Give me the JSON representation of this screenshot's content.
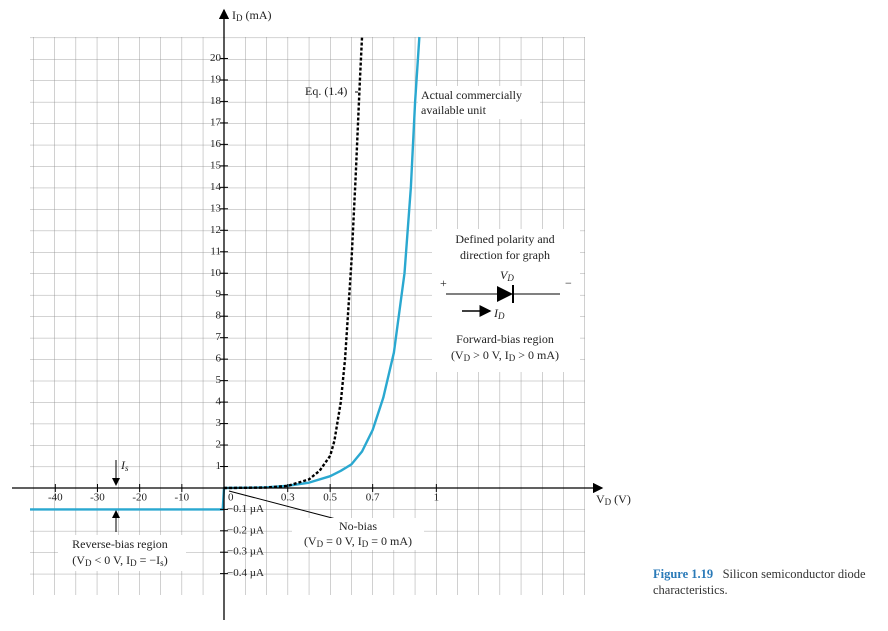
{
  "chart_data": {
    "type": "line",
    "ylabel": [
      "I",
      "D",
      " (mA)"
    ],
    "xlabel": [
      "V",
      "D",
      " (V)"
    ],
    "xlim": [
      -46,
      1.7
    ],
    "ylim": [
      -0.0005,
      21
    ],
    "xticks": [
      -40,
      -30,
      -20,
      -10,
      0,
      0.3,
      0.5,
      0.7,
      1
    ],
    "yticks": [
      1,
      2,
      3,
      4,
      5,
      6,
      7,
      8,
      9,
      10,
      11,
      12,
      13,
      14,
      15,
      16,
      17,
      18,
      19,
      20,
      {
        "value": -0.0001,
        "label": "−0.1 µA"
      },
      {
        "value": -0.0002,
        "label": "−0.2 µA"
      },
      {
        "value": -0.0003,
        "label": "−0.3 µA"
      },
      {
        "value": -0.0004,
        "label": "−0.4 µA"
      }
    ],
    "grid": true,
    "series": [
      {
        "color": "#2aa8d0",
        "dash": false,
        "x": [
          -46,
          -0.3,
          0,
          0.2,
          0.3,
          0.4,
          0.5,
          0.55,
          0.6,
          0.65,
          0.7,
          0.75,
          0.8,
          0.85,
          0.88,
          0.9,
          0.92
        ],
        "values": [
          -0.0001,
          -0.0001,
          0,
          0.03,
          0.1,
          0.25,
          0.55,
          0.8,
          1.1,
          1.7,
          2.7,
          4.2,
          6.3,
          10,
          14,
          18,
          21
        ]
      },
      {
        "color": "#000000",
        "dash": true,
        "x": [
          0,
          0.2,
          0.3,
          0.4,
          0.45,
          0.5,
          0.52,
          0.55,
          0.57,
          0.6,
          0.62,
          0.64,
          0.65
        ],
        "values": [
          0,
          0.02,
          0.1,
          0.4,
          0.8,
          1.5,
          2.2,
          4,
          6,
          10.5,
          14.5,
          19,
          21
        ]
      }
    ],
    "annotations": {
      "eq": "Eq. (1.4)",
      "actual": [
        "Actual commercially",
        "available unit"
      ],
      "polarity": [
        "Defined polarity and",
        "direction for graph"
      ],
      "vd": [
        "V",
        "D"
      ],
      "plus": "+",
      "minus": "−",
      "id": [
        "I",
        "D"
      ],
      "forward": "Forward-bias region",
      "forward_cond": [
        "(V",
        "D",
        " > 0 V,  I",
        "D",
        " > 0 mA)"
      ],
      "is": [
        "I",
        "s"
      ],
      "reverse": "Reverse-bias region",
      "reverse_cond": [
        "(V",
        "D",
        " < 0 V, I",
        "D",
        " = −I",
        "s",
        ")"
      ],
      "nobias": "No-bias",
      "nobias_cond": [
        "(V",
        "D",
        " = 0 V, I",
        "D",
        " = 0 mA)"
      ]
    },
    "caption": {
      "label": "Figure 1.19",
      "text": "Silicon semiconductor diode characteristics."
    }
  }
}
